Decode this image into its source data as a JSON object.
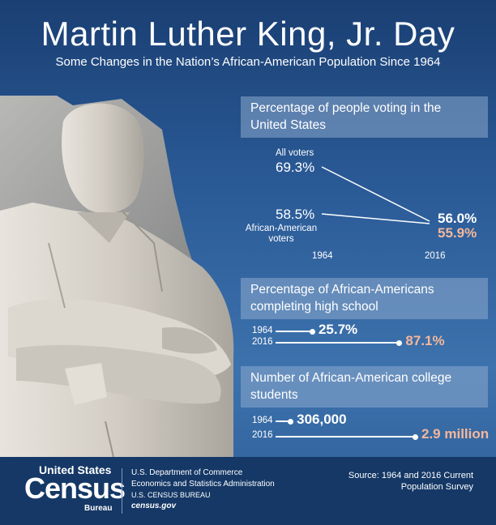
{
  "title": "Martin Luther King, Jr. Day",
  "subtitle": "Some Changes in the Nation’s African-American Population Since 1964",
  "colors": {
    "background": "#2a5a96",
    "footer": "#153866",
    "highlight": "#f4b79a",
    "text": "#ffffff"
  },
  "chart_data": [
    {
      "type": "line",
      "title": "Percentage of people voting in the United States",
      "x": [
        "1964",
        "2016"
      ],
      "series": [
        {
          "name": "All voters",
          "values": [
            69.3,
            56.0
          ],
          "labels": [
            "69.3%",
            "56.0%"
          ]
        },
        {
          "name": "African-American voters",
          "values": [
            58.5,
            55.9
          ],
          "labels": [
            "58.5%",
            "55.9%"
          ]
        }
      ]
    },
    {
      "type": "bar",
      "title": "Percentage of African-Americans completing high school",
      "categories": [
        "1964",
        "2016"
      ],
      "values": [
        25.7,
        87.1
      ],
      "labels": [
        "25.7%",
        "87.1%"
      ]
    },
    {
      "type": "bar",
      "title": "Number of African-American college students",
      "categories": [
        "1964",
        "2016"
      ],
      "values": [
        306000,
        2900000
      ],
      "labels": [
        "306,000",
        "2.9 million"
      ]
    }
  ],
  "footer": {
    "logo_top": "United States",
    "logo_main": "Census",
    "logo_bottom": "Bureau",
    "dept": "U.S. Department of Commerce",
    "admin": "Economics and Statistics Administration",
    "bureau": "U.S. CENSUS BUREAU",
    "site": "census.gov",
    "source_line1": "Source: 1964 and 2016 Current",
    "source_line2": "Population Survey"
  }
}
